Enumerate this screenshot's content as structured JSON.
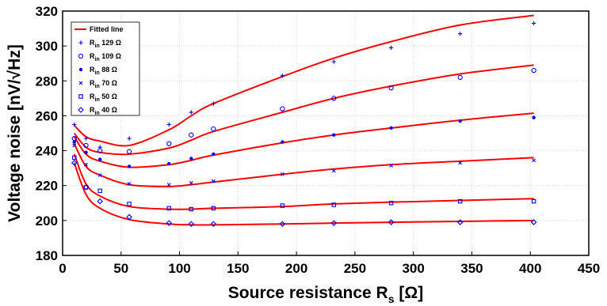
{
  "chart_data": {
    "type": "scatter",
    "xlabel_main": "Source resistance R",
    "xlabel_sub": "s",
    "xlabel_unit": " [Ω]",
    "ylabel": "Voltage noise [nV/√Hz]",
    "xlim": [
      0,
      450
    ],
    "ylim": [
      180,
      320
    ],
    "xticks": [
      0,
      50,
      100,
      150,
      200,
      250,
      300,
      350,
      400,
      450
    ],
    "yticks": [
      180,
      200,
      220,
      240,
      260,
      280,
      300,
      320
    ],
    "grid": true,
    "legend_position": "top-left",
    "fit_label": "Fitted line",
    "fit_color": "#ff0000",
    "marker_color": "#0000ff",
    "x": [
      10,
      20,
      32,
      57,
      91,
      110,
      129,
      188,
      232,
      281,
      340,
      403
    ],
    "series": [
      {
        "name_main": "R",
        "name_sub": "in",
        "name_rest": " 129 Ω",
        "marker": "plus",
        "values": [
          255,
          247,
          242,
          247,
          255,
          262,
          267,
          283,
          291,
          299,
          307,
          313
        ],
        "fit": [
          254.5,
          248,
          245.5,
          243,
          252,
          260,
          267,
          282.5,
          293,
          302.5,
          312,
          317.5
        ]
      },
      {
        "name_main": "R",
        "name_sub": "in",
        "name_rest": " 109 Ω",
        "marker": "circle",
        "values": [
          247,
          243,
          240,
          239.5,
          244,
          249,
          252.5,
          264,
          270,
          276,
          282,
          286
        ],
        "fit": [
          250,
          242,
          239,
          238,
          241.5,
          246,
          251,
          262,
          270,
          277,
          284,
          289
        ]
      },
      {
        "name_main": "R",
        "name_sub": "in",
        "name_rest": " 88 Ω",
        "marker": "dot",
        "values": [
          245,
          239,
          235,
          231,
          232.5,
          235.5,
          238,
          245,
          249,
          253,
          257,
          259
        ],
        "fit": [
          248,
          238,
          234,
          230.5,
          232,
          234.5,
          237.5,
          244.5,
          249,
          253,
          257.5,
          261.5
        ]
      },
      {
        "name_main": "R",
        "name_sub": "in",
        "name_rest": " 70 Ω",
        "marker": "x",
        "values": [
          243,
          232,
          226,
          221,
          220.5,
          221.5,
          222.5,
          226.5,
          228.5,
          231.5,
          233,
          234.5
        ],
        "fit": [
          244,
          231,
          226,
          220.5,
          219.5,
          220.5,
          222,
          226.5,
          229.5,
          232,
          234,
          236
        ]
      },
      {
        "name_main": "R",
        "name_sub": "in",
        "name_rest": " 50 Ω",
        "marker": "square",
        "values": [
          236,
          219,
          217,
          209.5,
          207,
          206.5,
          207,
          208.5,
          209,
          210,
          211,
          211
        ],
        "fit": [
          238,
          221,
          214,
          208,
          206.5,
          206.5,
          207,
          208,
          209.5,
          210.5,
          211.5,
          212.5
        ]
      },
      {
        "name_main": "R",
        "name_sub": "in",
        "name_rest": " 40 Ω",
        "marker": "diamond",
        "values": [
          233,
          219,
          211,
          202,
          198.5,
          198,
          198,
          198,
          198.5,
          199,
          199,
          199
        ],
        "fit": [
          233,
          215,
          207,
          200.5,
          198,
          197.5,
          197.5,
          198,
          198.5,
          199,
          199.5,
          200
        ]
      }
    ]
  }
}
